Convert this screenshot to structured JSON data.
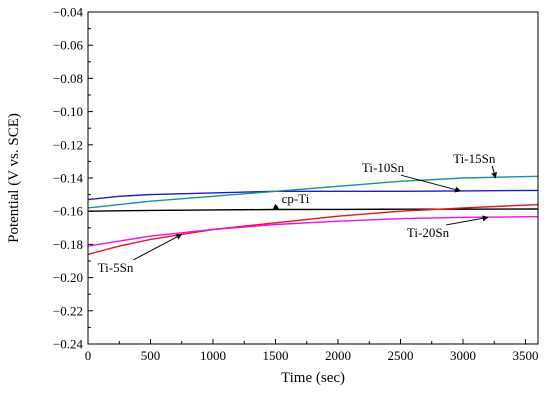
{
  "chart_data": {
    "type": "line",
    "title": "",
    "xlabel": "Time (sec)",
    "ylabel": "Potential (V vs. SCE)",
    "xlim": [
      0,
      3600
    ],
    "ylim": [
      -0.24,
      -0.04
    ],
    "xticks": [
      0,
      500,
      1000,
      1500,
      2000,
      2500,
      3000,
      3500
    ],
    "yticks": [
      -0.24,
      -0.22,
      -0.2,
      -0.18,
      -0.16,
      -0.14,
      -0.12,
      -0.1,
      -0.08,
      -0.06,
      -0.04
    ],
    "xtick_labels": [
      "0",
      "500",
      "1000",
      "1500",
      "2000",
      "2500",
      "3000",
      "3500"
    ],
    "ytick_labels": [
      "−0.24",
      "−0.22",
      "−0.20",
      "−0.18",
      "−0.16",
      "−0.14",
      "−0.12",
      "−0.10",
      "−0.08",
      "−0.06",
      "−0.04"
    ],
    "grid": false,
    "legend": "none",
    "series": [
      {
        "name": "cp-Ti",
        "color": "#000000",
        "x": [
          0,
          500,
          1000,
          1500,
          2000,
          2500,
          3000,
          3600
        ],
        "y": [
          -0.16,
          -0.1595,
          -0.1592,
          -0.159,
          -0.1589,
          -0.1588,
          -0.1588,
          -0.1587
        ]
      },
      {
        "name": "Ti-5Sn",
        "color": "#e8141c",
        "x": [
          0,
          100,
          250,
          500,
          750,
          1000,
          1500,
          2000,
          2500,
          3000,
          3600
        ],
        "y": [
          -0.186,
          -0.184,
          -0.181,
          -0.177,
          -0.174,
          -0.171,
          -0.167,
          -0.163,
          -0.16,
          -0.158,
          -0.156
        ]
      },
      {
        "name": "Ti-10Sn",
        "color": "#1a1adc",
        "x": [
          0,
          250,
          500,
          1000,
          1500,
          2000,
          2500,
          3000,
          3600
        ],
        "y": [
          -0.153,
          -0.151,
          -0.15,
          -0.149,
          -0.148,
          -0.148,
          -0.148,
          -0.1478,
          -0.1475
        ]
      },
      {
        "name": "Ti-15Sn",
        "color": "#16948c",
        "x": [
          0,
          250,
          500,
          1000,
          1500,
          2000,
          2500,
          3000,
          3600
        ],
        "y": [
          -0.158,
          -0.156,
          -0.154,
          -0.151,
          -0.148,
          -0.145,
          -0.142,
          -0.14,
          -0.139
        ]
      },
      {
        "name": "Ti-20Sn",
        "color": "#e812e8",
        "x": [
          0,
          250,
          500,
          1000,
          1500,
          2000,
          2500,
          3000,
          3600
        ],
        "y": [
          -0.181,
          -0.178,
          -0.175,
          -0.171,
          -0.168,
          -0.166,
          -0.1645,
          -0.1637,
          -0.1633
        ]
      }
    ],
    "annotations": [
      {
        "text": "Ti-15Sn",
        "x": 3090,
        "y": -0.131,
        "ax": 3260,
        "ay": -0.14
      },
      {
        "text": "Ti-10Sn",
        "x": 2360,
        "y": -0.1365,
        "ax": 2980,
        "ay": -0.1478
      },
      {
        "text": "cp-Ti",
        "x": 1660,
        "y": -0.155,
        "ax": 1480,
        "ay": -0.159
      },
      {
        "text": "Ti-20Sn",
        "x": 2720,
        "y": -0.1755,
        "ax": 3200,
        "ay": -0.1637
      },
      {
        "text": "Ti-5Sn",
        "x": 220,
        "y": -0.1965,
        "ax": 750,
        "ay": -0.174
      }
    ]
  }
}
